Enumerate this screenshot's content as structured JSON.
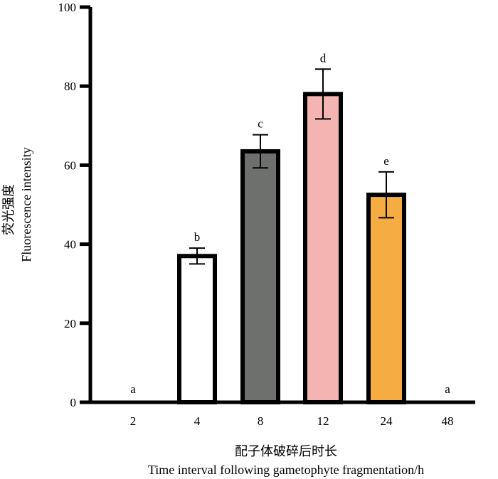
{
  "chart_data": {
    "type": "bar",
    "title": "",
    "categories": [
      "2",
      "4",
      "8",
      "12",
      "24",
      "48"
    ],
    "values": [
      0,
      37,
      63.5,
      78,
      52.5,
      0
    ],
    "errors": [
      0,
      2,
      4.2,
      6.3,
      5.8,
      0
    ],
    "significance": [
      "a",
      "b",
      "c",
      "d",
      "e",
      "a"
    ],
    "fills": [
      "#ffffff",
      "#ffffff",
      "#6d706d",
      "#f4b5b2",
      "#f5ad43",
      "#ffffff"
    ],
    "ylim": [
      0,
      100
    ],
    "yticks": [
      "0",
      "20",
      "40",
      "60",
      "80",
      "100"
    ],
    "ylabel_zh": "荧光强度",
    "ylabel": "Fluorescence intensity",
    "xlabel_zh": "配子体破碎后时长",
    "xlabel": "Time interval following gametophyte fragmentation/h"
  }
}
